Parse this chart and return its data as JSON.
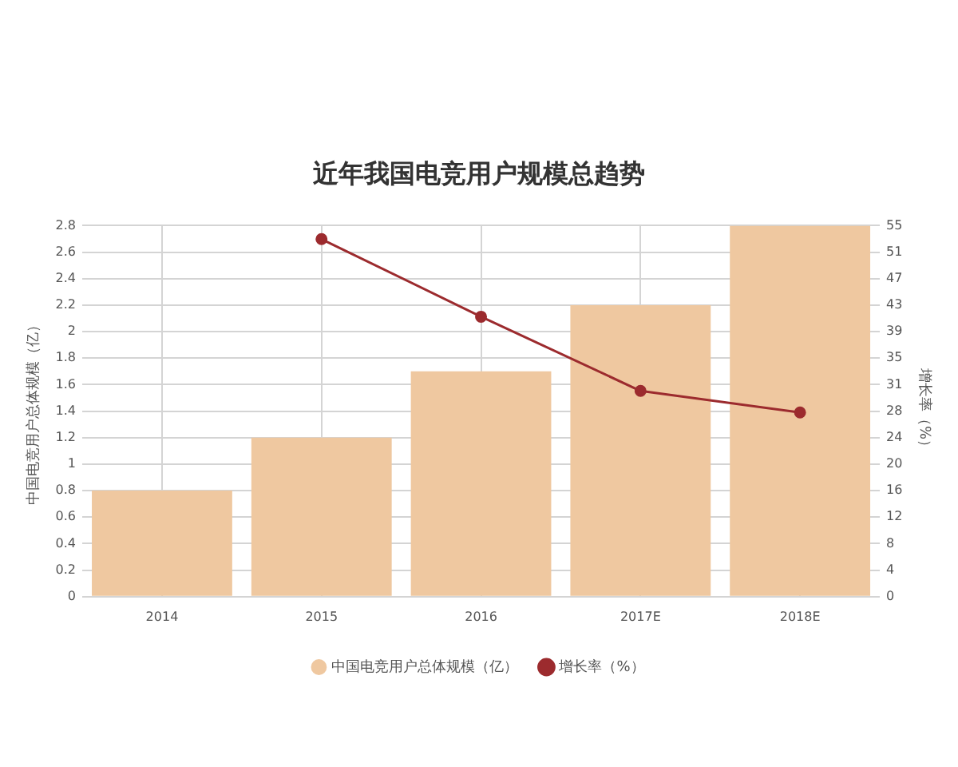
{
  "chart_data": {
    "type": "bar",
    "title": "近年我国电竞用户规模总趋势",
    "categories": [
      "2014",
      "2015",
      "2016",
      "2017E",
      "2018E"
    ],
    "series": [
      {
        "name": "中国电竞用户总体规模（亿）",
        "color": "#efc8a0",
        "values": [
          0.8,
          1.2,
          1.7,
          2.2,
          2.8
        ]
      },
      {
        "name": "增长率（%）",
        "type": "line",
        "axis": "y2",
        "color": "#9c2b2e",
        "values": [
          null,
          53,
          41.5,
          30.5,
          27.3
        ]
      }
    ],
    "ylabel": "中国电竞用户总体规模（亿）",
    "y2label": "增长率（%）",
    "ylim": [
      0,
      2.8
    ],
    "yticks": [
      0,
      0.2,
      0.4,
      0.6,
      0.8,
      1,
      1.2,
      1.4,
      1.6,
      1.8,
      2,
      2.2,
      2.4,
      2.6,
      2.8
    ],
    "y2lim": [
      0,
      55
    ],
    "y2ticks": [
      0,
      {
        "value": 3.93,
        "label": "4"
      },
      {
        "value": 7.86,
        "label": "8"
      },
      {
        "value": 11.79,
        "label": "12"
      },
      {
        "value": 15.71,
        "label": "16"
      },
      {
        "value": 19.64,
        "label": "20"
      },
      {
        "value": 23.57,
        "label": "24"
      },
      {
        "value": 27.5,
        "label": "28"
      },
      {
        "value": 31.43,
        "label": "31"
      },
      {
        "value": 35.36,
        "label": "35"
      },
      {
        "value": 39.29,
        "label": "39"
      },
      {
        "value": 43.21,
        "label": "43"
      },
      {
        "value": 47.14,
        "label": "47"
      },
      {
        "value": 51.07,
        "label": "51"
      },
      55
    ],
    "grid": true,
    "legend": "bottom",
    "marker": "circle"
  }
}
